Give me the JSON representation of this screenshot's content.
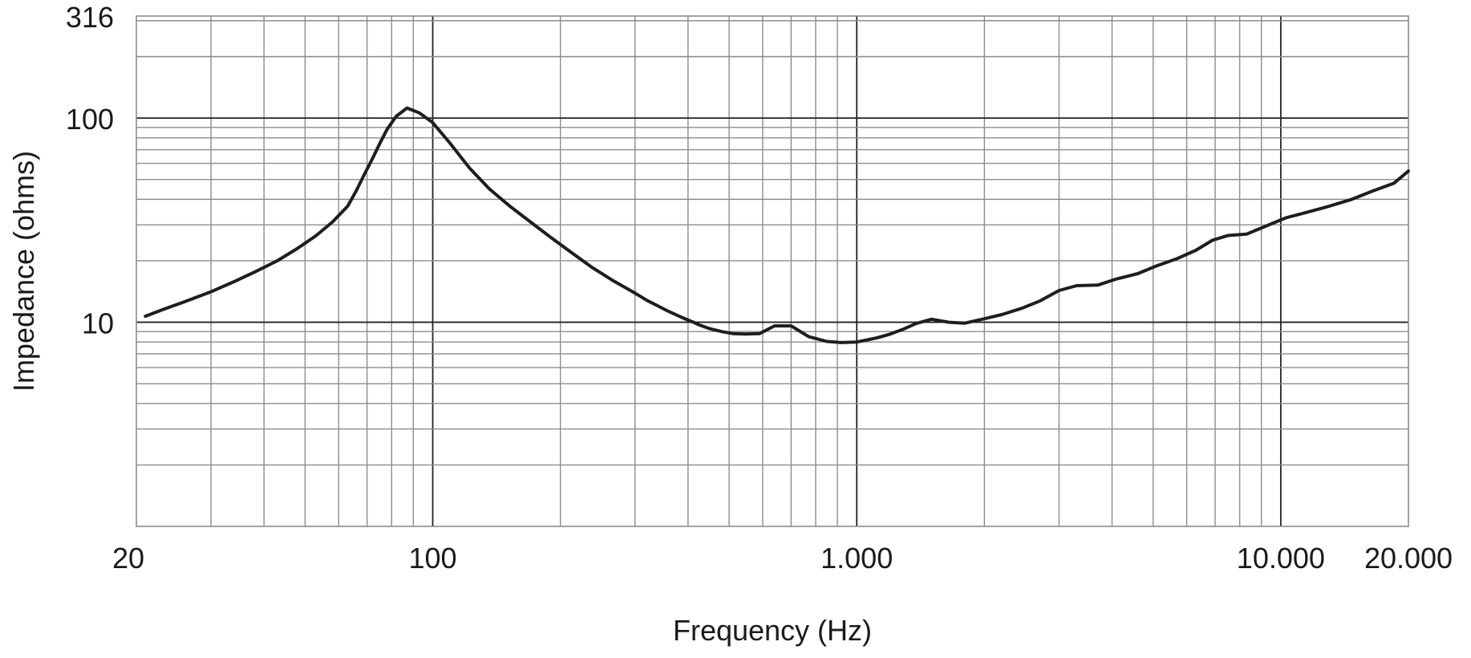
{
  "chart_data": {
    "type": "line",
    "title": "",
    "xlabel": "Frequency (Hz)",
    "ylabel": "Impedance (ohms)",
    "x_scale": "log",
    "y_scale": "log",
    "xlim": [
      20,
      20000
    ],
    "ylim": [
      1,
      316
    ],
    "grid": true,
    "x_ticks": [
      {
        "value": 20,
        "label": "20"
      },
      {
        "value": 100,
        "label": "100"
      },
      {
        "value": 1000,
        "label": "1.000"
      },
      {
        "value": 10000,
        "label": "10.000"
      },
      {
        "value": 20000,
        "label": "20.000"
      }
    ],
    "y_ticks": [
      {
        "value": 10,
        "label": "10"
      },
      {
        "value": 100,
        "label": "100"
      },
      {
        "value": 316,
        "label": "316"
      }
    ],
    "colors": {
      "curve": "#1e1e1e",
      "grid_major": "#222222",
      "grid_minor": "#8c8c8c"
    },
    "series": [
      {
        "x": [
          21,
          23,
          26,
          30,
          34,
          38,
          43,
          48,
          53,
          58,
          63,
          66,
          69,
          72,
          75,
          78,
          82,
          87,
          93,
          100,
          110,
          122,
          136,
          152,
          170,
          190,
          212,
          238,
          266,
          298,
          320,
          340,
          360,
          385,
          412,
          425,
          450,
          480,
          510,
          545,
          590,
          640,
          700,
          770,
          850,
          920,
          1000,
          1060,
          1120,
          1200,
          1280,
          1380,
          1500,
          1650,
          1800,
          2000,
          2200,
          2450,
          2700,
          3000,
          3300,
          3700,
          4100,
          4600,
          5100,
          5700,
          6300,
          6900,
          7500,
          8300,
          9200,
          10300,
          11500,
          13000,
          14700,
          16500,
          18500,
          20000
        ],
        "y": [
          10.7,
          11.5,
          12.6,
          14.1,
          15.8,
          17.6,
          20.0,
          23.0,
          26.5,
          31.0,
          37.0,
          44.0,
          53.0,
          63.0,
          75.0,
          88.0,
          102.0,
          112.0,
          106.0,
          95.0,
          75.0,
          57.0,
          45.0,
          37.0,
          31.0,
          26.0,
          22.0,
          18.5,
          16.0,
          14.0,
          12.8,
          12.0,
          11.3,
          10.6,
          10.0,
          9.7,
          9.3,
          9.0,
          8.8,
          8.75,
          8.8,
          9.6,
          9.6,
          8.5,
          8.05,
          7.95,
          8.0,
          8.2,
          8.4,
          8.75,
          9.2,
          9.85,
          10.35,
          10.0,
          9.9,
          10.4,
          10.9,
          11.7,
          12.7,
          14.3,
          15.1,
          15.2,
          16.3,
          17.3,
          18.9,
          20.5,
          22.5,
          25.2,
          26.6,
          27.0,
          29.5,
          32.5,
          34.5,
          37.0,
          40.0,
          44.0,
          48.0,
          55.0
        ]
      }
    ]
  }
}
